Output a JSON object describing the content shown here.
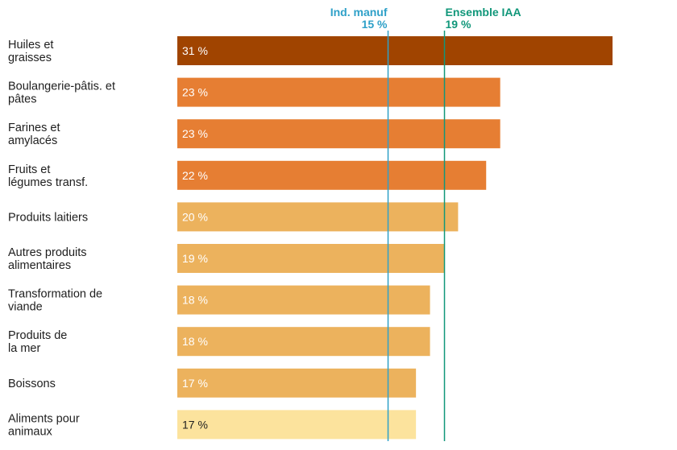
{
  "chart_data": {
    "type": "bar",
    "orientation": "horizontal",
    "categories": [
      [
        "Huiles et",
        "graisses"
      ],
      [
        "Boulangerie-pâtis. et",
        "pâtes"
      ],
      [
        "Farines et",
        "amylacés"
      ],
      [
        "Fruits et",
        "légumes transf."
      ],
      [
        "Produits laitiers"
      ],
      [
        "Autres produits",
        "alimentaires"
      ],
      [
        "Transformation de",
        "viande"
      ],
      [
        "Produits de",
        "la mer"
      ],
      [
        "Boissons"
      ],
      [
        "Aliments pour",
        "animaux"
      ]
    ],
    "values": [
      31,
      23,
      23,
      22,
      20,
      19,
      18,
      18,
      17,
      17
    ],
    "value_labels": [
      "31 %",
      "23 %",
      "23 %",
      "22 %",
      "20 %",
      "19 %",
      "18 %",
      "18 %",
      "17 %",
      "17 %"
    ],
    "bar_colors": [
      "#a04400",
      "#e67e33",
      "#e67e33",
      "#e67e33",
      "#ecb25d",
      "#ecb25d",
      "#ecb25d",
      "#ecb25d",
      "#ecb25d",
      "#fce39d"
    ],
    "value_label_colors": [
      "#ffffff",
      "#ffffff",
      "#ffffff",
      "#ffffff",
      "#ffffff",
      "#ffffff",
      "#ffffff",
      "#ffffff",
      "#ffffff",
      "#1e1e1e"
    ],
    "reference_lines": [
      {
        "name": "Ind. manuf",
        "label": "15 %",
        "value": 15,
        "color": "#2ea0c8"
      },
      {
        "name": "Ensemble IAA",
        "label": "19 %",
        "value": 19,
        "color": "#11977a"
      }
    ],
    "xlim": [
      0,
      31
    ],
    "grid": false
  }
}
